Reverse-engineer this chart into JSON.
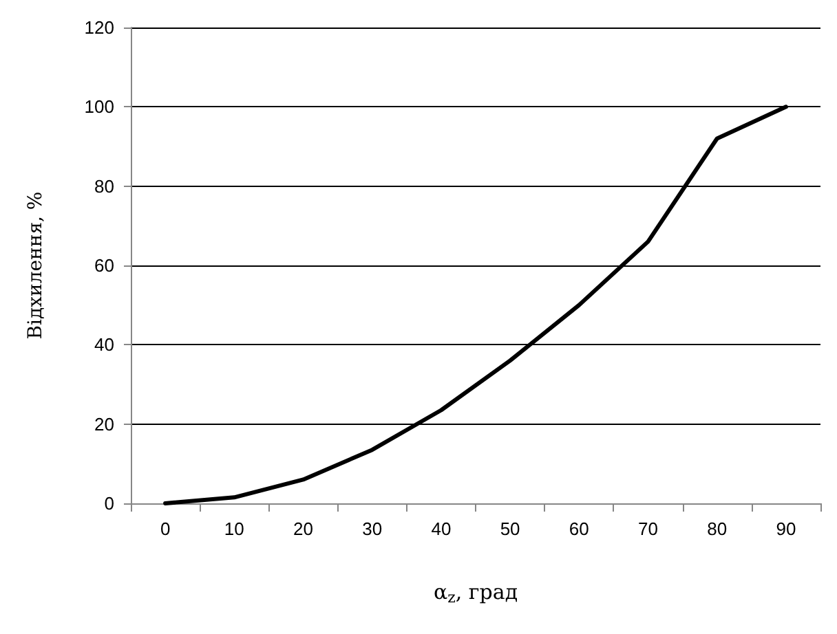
{
  "chart_data": {
    "type": "line",
    "xlabel": "α$_{z}$, град",
    "ylabel": "Відхилення, %",
    "categories": [
      "0",
      "10",
      "20",
      "30",
      "40",
      "50",
      "60",
      "70",
      "80",
      "90"
    ],
    "series": [
      {
        "color": "#000000",
        "values": [
          0,
          1.5,
          6,
          13.5,
          23.5,
          36,
          50,
          66,
          92,
          100
        ]
      }
    ],
    "ylim": [
      0,
      120
    ],
    "yticks": [
      0,
      20,
      40,
      60,
      80,
      100,
      120
    ],
    "grid": "y",
    "marker": "none",
    "line_style": "solid"
  }
}
